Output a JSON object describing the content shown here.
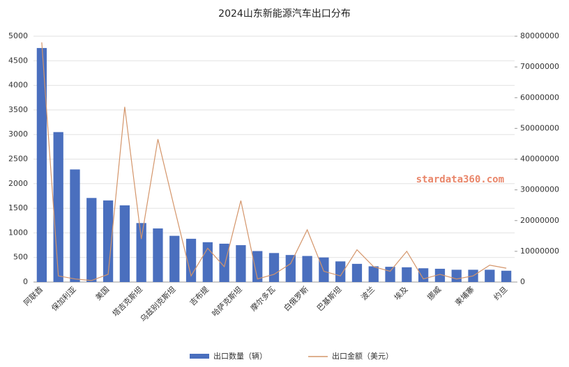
{
  "chart_data": {
    "type": "bar_line",
    "title": "2024山东新能源汽车出口分布",
    "annotation": "stardata360.com",
    "categories": [
      "阿联酋",
      null,
      "保加利亚",
      null,
      "美国",
      null,
      "塔吉克斯坦",
      null,
      "乌兹别克斯坦",
      null,
      "吉布提",
      null,
      "哈萨克斯坦",
      null,
      "摩尔多瓦",
      null,
      "白俄罗斯",
      null,
      "巴基斯坦",
      null,
      "波兰",
      null,
      "埃及",
      null,
      "挪威",
      null,
      "柬埔寨",
      null,
      "约旦"
    ],
    "series": [
      {
        "name": "出口数量（辆）",
        "color": "#4a6fbe",
        "type": "bar",
        "values": [
          4760,
          3050,
          2290,
          1710,
          1660,
          1560,
          1200,
          1090,
          940,
          880,
          810,
          780,
          750,
          630,
          590,
          550,
          530,
          500,
          420,
          370,
          320,
          310,
          300,
          280,
          270,
          250,
          250,
          250,
          230
        ]
      },
      {
        "name": "出口金额（美元）",
        "color": "#d4956a",
        "type": "line",
        "axis": "y2",
        "values": [
          78000000,
          2000000,
          1000000,
          500000,
          2500000,
          57000000,
          14000000,
          46500000,
          24000000,
          2000000,
          11000000,
          5000000,
          26500000,
          1000000,
          2500000,
          6000000,
          17000000,
          3500000,
          2000000,
          10500000,
          5000000,
          3500000,
          10000000,
          1000000,
          2500000,
          1000000,
          2000000,
          5500000,
          4500000
        ]
      }
    ],
    "ylim": [
      0,
      5000
    ],
    "yticks": [
      0,
      500,
      1000,
      1500,
      2000,
      2500,
      3000,
      3500,
      4000,
      4500,
      5000
    ],
    "y2lim": [
      0,
      80000000
    ],
    "y2ticks": [
      0,
      10000000,
      20000000,
      30000000,
      40000000,
      50000000,
      60000000,
      70000000,
      80000000
    ],
    "grid": true,
    "legend": "bottom"
  }
}
